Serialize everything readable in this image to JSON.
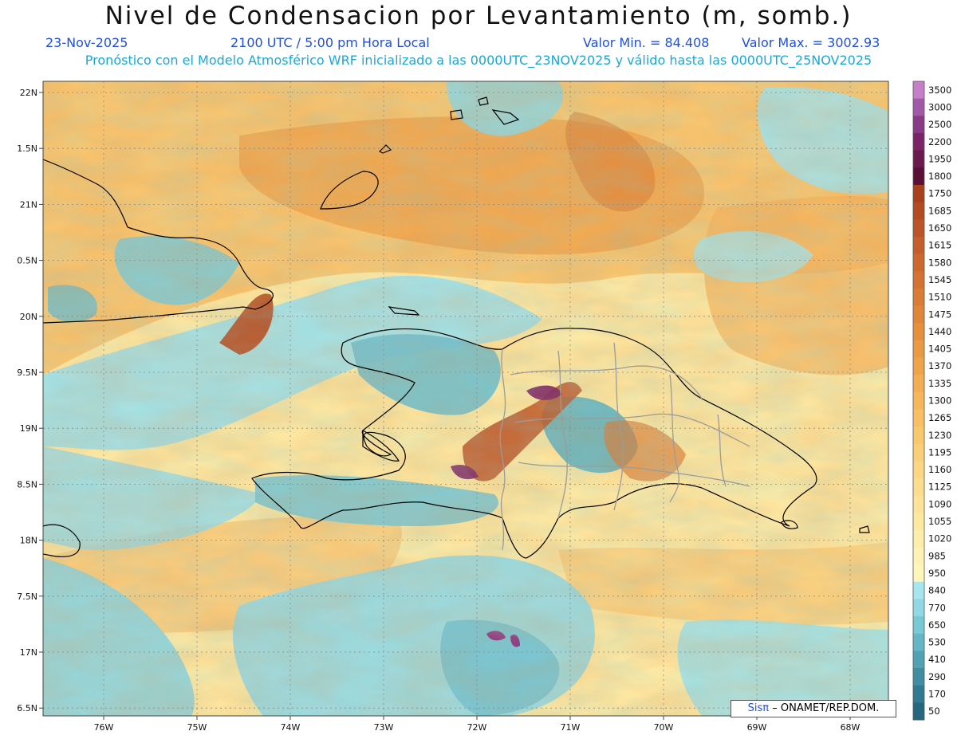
{
  "header": {
    "title": "Nivel de Condensacion por Levantamiento (m, somb.)",
    "date": "23-Nov-2025",
    "time": "2100 UTC / 5:00 pm Hora Local",
    "valor_min": "Valor Min. = 84.408",
    "valor_max": "Valor Max. = 3002.93",
    "model_info": "Pronóstico con el Modelo Atmosférico WRF inicializado a las 0000UTC_23NOV2025 y válido hasta las  0000UTC_25NOV2025"
  },
  "map": {
    "lon_labels": [
      "76W",
      "75W",
      "74W",
      "73W",
      "72W",
      "71W",
      "70W",
      "69W",
      "68W"
    ],
    "lat_labels": [
      "22N",
      "1.5N",
      "21N",
      "0.5N",
      "20N",
      "9.5N",
      "19N",
      "8.5N",
      "18N",
      "7.5N",
      "17N",
      "6.5N"
    ],
    "colorbar_labels": [
      "3500",
      "3000",
      "2500",
      "2200",
      "1950",
      "1800",
      "1750",
      "1685",
      "1650",
      "1615",
      "1580",
      "1545",
      "1510",
      "1475",
      "1440",
      "1405",
      "1370",
      "1335",
      "1300",
      "1265",
      "1230",
      "1195",
      "1160",
      "1125",
      "1090",
      "1055",
      "1020",
      "985",
      "950",
      "840",
      "770",
      "650",
      "530",
      "410",
      "290",
      "170",
      "50"
    ],
    "colorbar_colors": [
      "#c77ec9",
      "#a259a8",
      "#8b3a85",
      "#7a2366",
      "#6a1a4c",
      "#5a0f36",
      "#a8401e",
      "#b24a22",
      "#bb5426",
      "#c45e2a",
      "#cc682e",
      "#d37232",
      "#da7c36",
      "#e0863a",
      "#e6903e",
      "#eb9a44",
      "#ef a34a",
      "#f3ad52",
      "#f6b65a",
      "#f8bf64",
      "#f9c76e",
      "#fbcf79",
      "#fcd684",
      "#fddc8e",
      "#fee298",
      "#fee8a2",
      "#ffeeab",
      "#fff2b3",
      "#fff6bb",
      "#a8e6ee",
      "#8fd8e4",
      "#79c8d6",
      "#65b6c6",
      "#52a2b5",
      "#418ea3",
      "#327a92",
      "#256781"
    ]
  },
  "credit": {
    "brand": "Sisπ",
    "org": "– ONAMET/REP.DOM."
  }
}
